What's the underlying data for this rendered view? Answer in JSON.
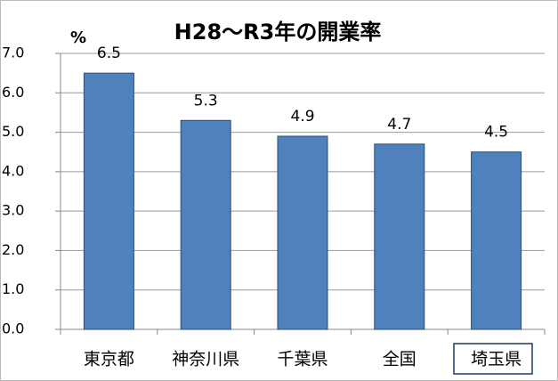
{
  "chart_data": {
    "type": "bar",
    "title": "H28～R3年の開業率",
    "y_label": "%",
    "categories": [
      "東京都",
      "神奈川県",
      "千葉県",
      "全国",
      "埼玉県"
    ],
    "values": [
      6.5,
      5.3,
      4.9,
      4.7,
      4.5
    ],
    "color": "#4f81bd",
    "ylim": [
      0,
      7
    ],
    "yticks": [
      {
        "value": 0,
        "label": "0.0"
      },
      {
        "value": 1,
        "label": "1.0"
      },
      {
        "value": 2,
        "label": "2.0"
      },
      {
        "value": 3,
        "label": "3.0"
      },
      {
        "value": 4,
        "label": "4.0"
      },
      {
        "value": 5,
        "label": "5.0"
      },
      {
        "value": 6,
        "label": "6.0"
      },
      {
        "value": 7,
        "label": "7.0"
      }
    ],
    "grid": true
  }
}
